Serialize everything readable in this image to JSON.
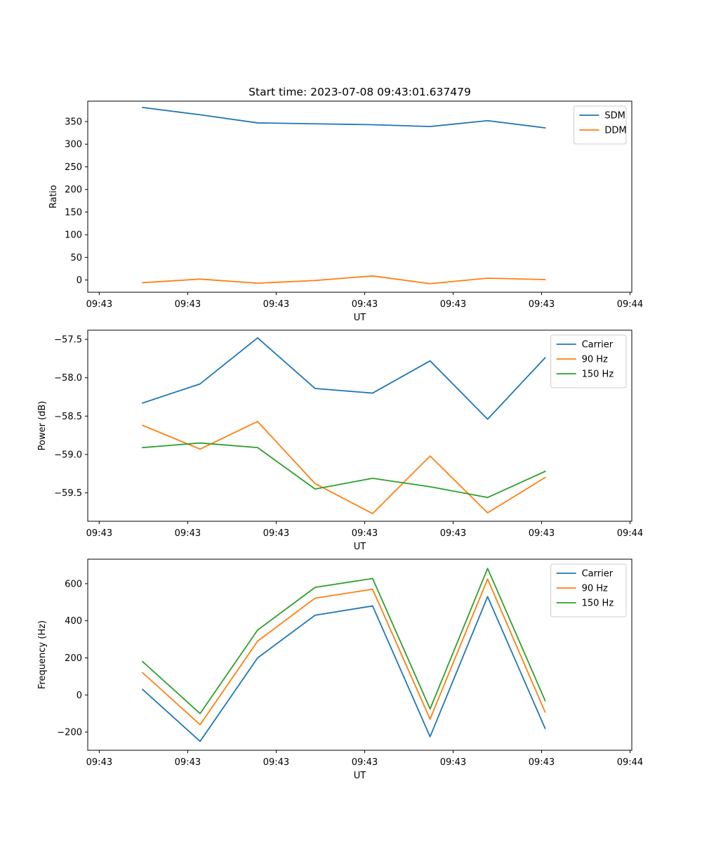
{
  "chart_data": [
    {
      "type": "line",
      "title": "Start time: 2023-07-08 09:43:01.637479",
      "xlabel": "UT",
      "ylabel": "Ratio",
      "x_tick_labels": [
        "09:43",
        "09:43",
        "09:43",
        "09:43",
        "09:43",
        "09:43",
        "09:44"
      ],
      "x_ticks": [
        0,
        1,
        2,
        3,
        4,
        5,
        6
      ],
      "xlim": [
        -0.13,
        6.02
      ],
      "ylim": [
        -27,
        395
      ],
      "y_ticks": [
        0,
        50,
        100,
        150,
        200,
        250,
        300,
        350
      ],
      "y_tick_labels": [
        "0",
        "50",
        "100",
        "150",
        "200",
        "250",
        "300",
        "350"
      ],
      "x": [
        0.49,
        1.14,
        1.79,
        2.44,
        3.09,
        3.74,
        4.39,
        5.04
      ],
      "legend_position": "upper right",
      "series": [
        {
          "name": "SDM",
          "color": "#1f77b4",
          "values": [
            381,
            365,
            347,
            345,
            343,
            339,
            352,
            336
          ]
        },
        {
          "name": "DDM",
          "color": "#ff7f0e",
          "values": [
            -6,
            2,
            -7,
            -1,
            9,
            -8,
            4,
            1
          ]
        }
      ]
    },
    {
      "type": "line",
      "title": "",
      "xlabel": "UT",
      "ylabel": "Power (dB)",
      "x_tick_labels": [
        "09:43",
        "09:43",
        "09:43",
        "09:43",
        "09:43",
        "09:43",
        "09:44"
      ],
      "x_ticks": [
        0,
        1,
        2,
        3,
        4,
        5,
        6
      ],
      "xlim": [
        -0.13,
        6.02
      ],
      "ylim": [
        -59.87,
        -57.38
      ],
      "y_ticks": [
        -59.5,
        -59.0,
        -58.5,
        -58.0,
        -57.5
      ],
      "y_tick_labels": [
        "−59.5",
        "−59.0",
        "−58.5",
        "−58.0",
        "−57.5"
      ],
      "x": [
        0.49,
        1.14,
        1.79,
        2.44,
        3.09,
        3.74,
        4.39,
        5.04
      ],
      "legend_position": "upper right",
      "series": [
        {
          "name": "Carrier",
          "color": "#1f77b4",
          "values": [
            -58.33,
            -58.08,
            -57.48,
            -58.14,
            -58.2,
            -57.78,
            -58.54,
            -57.74
          ]
        },
        {
          "name": "90 Hz",
          "color": "#ff7f0e",
          "values": [
            -58.62,
            -58.93,
            -58.57,
            -59.38,
            -59.77,
            -59.02,
            -59.76,
            -59.3
          ]
        },
        {
          "name": "150 Hz",
          "color": "#2ca02c",
          "values": [
            -58.91,
            -58.85,
            -58.91,
            -59.45,
            -59.31,
            -59.42,
            -59.56,
            -59.22
          ]
        }
      ]
    },
    {
      "type": "line",
      "title": "",
      "xlabel": "UT",
      "ylabel": "Frequency (Hz)",
      "x_tick_labels": [
        "09:43",
        "09:43",
        "09:43",
        "09:43",
        "09:43",
        "09:43",
        "09:44"
      ],
      "x_ticks": [
        0,
        1,
        2,
        3,
        4,
        5,
        6
      ],
      "xlim": [
        -0.13,
        6.02
      ],
      "ylim": [
        -298,
        732
      ],
      "y_ticks": [
        -200,
        0,
        200,
        400,
        600
      ],
      "y_tick_labels": [
        "−200",
        "0",
        "200",
        "400",
        "600"
      ],
      "x": [
        0.49,
        1.14,
        1.79,
        2.44,
        3.09,
        3.74,
        4.39,
        5.04
      ],
      "legend_position": "upper right",
      "series": [
        {
          "name": "Carrier",
          "color": "#1f77b4",
          "values": [
            30,
            -250,
            200,
            430,
            480,
            -225,
            530,
            -180
          ]
        },
        {
          "name": "90 Hz",
          "color": "#ff7f0e",
          "values": [
            120,
            -160,
            290,
            522,
            570,
            -130,
            625,
            -92
          ]
        },
        {
          "name": "150 Hz",
          "color": "#2ca02c",
          "values": [
            180,
            -100,
            350,
            580,
            628,
            -75,
            682,
            -30
          ]
        }
      ]
    }
  ]
}
